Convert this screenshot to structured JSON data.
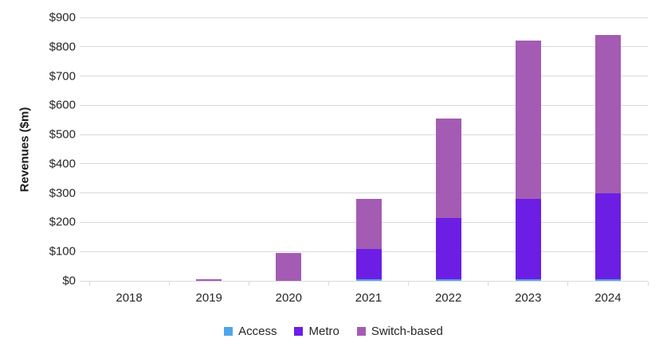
{
  "chart_data": {
    "type": "bar",
    "stacked": true,
    "title": "",
    "xlabel": "",
    "ylabel": "Revenues ($m)",
    "categories": [
      "2018",
      "2019",
      "2020",
      "2021",
      "2022",
      "2023",
      "2024"
    ],
    "series": [
      {
        "name": "Access",
        "color": "#4EA6EA",
        "values": [
          0,
          0,
          0,
          5,
          5,
          5,
          5
        ]
      },
      {
        "name": "Metro",
        "color": "#6C1EE4",
        "values": [
          0,
          0,
          0,
          105,
          210,
          275,
          295
        ]
      },
      {
        "name": "Switch-based",
        "color": "#A45BB3",
        "values": [
          0,
          5,
          95,
          170,
          340,
          540,
          540
        ]
      }
    ],
    "totals": [
      0,
      5,
      95,
      280,
      555,
      820,
      840
    ],
    "ylim": [
      0,
      900
    ],
    "ytick_values": [
      0,
      100,
      200,
      300,
      400,
      500,
      600,
      700,
      800,
      900
    ],
    "ytick_labels": [
      "$0",
      "$100",
      "$200",
      "$300",
      "$400",
      "$500",
      "$600",
      "$700",
      "$800",
      "$900"
    ],
    "grid": "horizontal",
    "legend_position": "bottom",
    "colors": {
      "gridline": "#D9D9D9",
      "tick": "#D9D9D9",
      "text": "#262626",
      "background": "#FFFFFF"
    }
  }
}
